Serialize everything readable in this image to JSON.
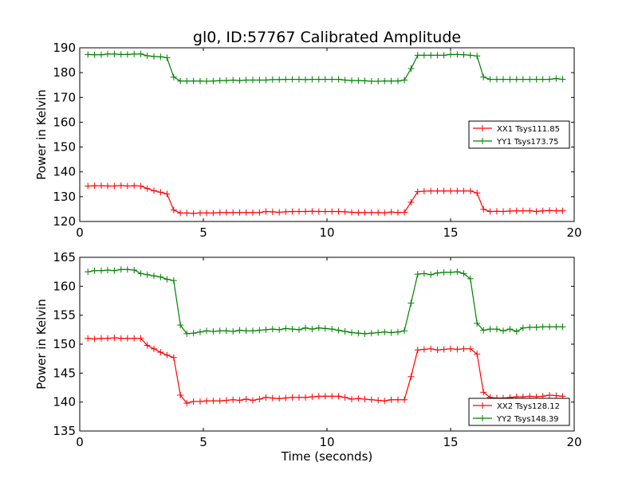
{
  "figure": {
    "title": "gl0, ID:57767 Calibrated Amplitude",
    "xlabel": "Time (seconds)"
  },
  "colors": {
    "red": "#ff0000",
    "green": "#008000"
  },
  "chart_data": [
    {
      "type": "line",
      "title": "gl0, ID:57767 Calibrated Amplitude",
      "xlabel": "",
      "ylabel": "Power in Kelvin",
      "xlim": [
        0,
        20
      ],
      "ylim": [
        120,
        190
      ],
      "xticks": [
        0,
        5,
        10,
        15,
        20
      ],
      "yticks": [
        120,
        130,
        140,
        150,
        160,
        170,
        180,
        190
      ],
      "grid": false,
      "legend_position": "center-right",
      "series": [
        {
          "name": "XX1 Tsys111.85",
          "color": "#ff0000",
          "marker": "+",
          "x": [
            0.33,
            0.6,
            0.87,
            1.13,
            1.4,
            1.67,
            1.93,
            2.2,
            2.47,
            2.73,
            3.0,
            3.27,
            3.53,
            3.8,
            4.07,
            4.33,
            4.6,
            4.87,
            5.13,
            5.4,
            5.67,
            5.93,
            6.2,
            6.47,
            6.73,
            7.0,
            7.27,
            7.53,
            7.8,
            8.07,
            8.33,
            8.6,
            8.87,
            9.13,
            9.4,
            9.67,
            9.93,
            10.2,
            10.47,
            10.73,
            11.0,
            11.27,
            11.53,
            11.8,
            12.07,
            12.33,
            12.6,
            12.87,
            13.13,
            13.4,
            13.67,
            13.93,
            14.2,
            14.47,
            14.73,
            15.0,
            15.27,
            15.53,
            15.8,
            16.07,
            16.33,
            16.6,
            16.87,
            17.13,
            17.4,
            17.67,
            17.93,
            18.2,
            18.47,
            18.73,
            19.0,
            19.27,
            19.53
          ],
          "y": [
            134.3,
            134.4,
            134.4,
            134.3,
            134.3,
            134.5,
            134.3,
            134.4,
            134.3,
            133.3,
            132.4,
            131.8,
            131.1,
            124.6,
            123.4,
            123.4,
            123.3,
            123.4,
            123.4,
            123.4,
            123.6,
            123.6,
            123.6,
            123.6,
            123.6,
            123.6,
            123.6,
            124.0,
            123.9,
            123.7,
            123.9,
            124.0,
            124.0,
            124.0,
            124.1,
            124.0,
            124.0,
            124.0,
            124.0,
            123.9,
            123.7,
            123.6,
            123.6,
            123.6,
            123.6,
            123.5,
            123.8,
            123.6,
            123.7,
            127.8,
            132.0,
            132.2,
            132.3,
            132.3,
            132.3,
            132.3,
            132.3,
            132.3,
            132.3,
            131.5,
            124.9,
            124.0,
            124.1,
            124.0,
            124.2,
            124.3,
            124.3,
            124.3,
            124.0,
            124.3,
            124.4,
            124.3,
            124.3
          ]
        },
        {
          "name": "YY1 Tsys173.75",
          "color": "#008000",
          "marker": "+",
          "x": [
            0.33,
            0.6,
            0.87,
            1.13,
            1.4,
            1.67,
            1.93,
            2.2,
            2.47,
            2.73,
            3.0,
            3.27,
            3.53,
            3.8,
            4.07,
            4.33,
            4.6,
            4.87,
            5.13,
            5.4,
            5.67,
            5.93,
            6.2,
            6.47,
            6.73,
            7.0,
            7.27,
            7.53,
            7.8,
            8.07,
            8.33,
            8.6,
            8.87,
            9.13,
            9.4,
            9.67,
            9.93,
            10.2,
            10.47,
            10.73,
            11.0,
            11.27,
            11.53,
            11.8,
            12.07,
            12.33,
            12.6,
            12.87,
            13.13,
            13.4,
            13.67,
            13.93,
            14.2,
            14.47,
            14.73,
            15.0,
            15.27,
            15.53,
            15.8,
            16.07,
            16.33,
            16.6,
            16.87,
            17.13,
            17.4,
            17.67,
            17.93,
            18.2,
            18.47,
            18.73,
            19.0,
            19.27,
            19.53
          ],
          "y": [
            187.3,
            187.2,
            187.2,
            187.5,
            187.5,
            187.3,
            187.3,
            187.5,
            187.5,
            186.8,
            186.5,
            186.4,
            186.0,
            178.2,
            176.6,
            176.6,
            176.6,
            176.6,
            176.5,
            176.6,
            176.8,
            176.8,
            177.0,
            176.8,
            177.0,
            177.0,
            177.0,
            177.0,
            177.2,
            177.2,
            177.3,
            177.3,
            177.3,
            177.2,
            177.3,
            177.3,
            177.3,
            177.3,
            177.3,
            177.0,
            176.8,
            176.8,
            176.7,
            176.5,
            176.5,
            176.6,
            176.6,
            176.6,
            177.0,
            181.6,
            187.0,
            187.0,
            187.0,
            187.0,
            187.0,
            187.3,
            187.3,
            187.2,
            187.0,
            186.7,
            178.2,
            177.3,
            177.3,
            177.3,
            177.3,
            177.3,
            177.3,
            177.3,
            177.3,
            177.3,
            177.3,
            177.6,
            177.3
          ]
        }
      ]
    },
    {
      "type": "line",
      "title": "",
      "xlabel": "Time (seconds)",
      "ylabel": "Power in Kelvin",
      "xlim": [
        0,
        20
      ],
      "ylim": [
        135,
        165
      ],
      "xticks": [
        0,
        5,
        10,
        15,
        20
      ],
      "yticks": [
        135,
        140,
        145,
        150,
        155,
        160,
        165
      ],
      "grid": false,
      "legend_position": "bottom-right",
      "series": [
        {
          "name": "XX2 Tsys128.12",
          "color": "#ff0000",
          "marker": "+",
          "x": [
            0.33,
            0.6,
            0.87,
            1.13,
            1.4,
            1.67,
            1.93,
            2.2,
            2.47,
            2.73,
            3.0,
            3.27,
            3.53,
            3.8,
            4.07,
            4.33,
            4.6,
            4.87,
            5.13,
            5.4,
            5.67,
            5.93,
            6.2,
            6.47,
            6.73,
            7.0,
            7.27,
            7.53,
            7.8,
            8.07,
            8.33,
            8.6,
            8.87,
            9.13,
            9.4,
            9.67,
            9.93,
            10.2,
            10.47,
            10.73,
            11.0,
            11.27,
            11.53,
            11.8,
            12.07,
            12.33,
            12.6,
            12.87,
            13.13,
            13.4,
            13.67,
            13.93,
            14.2,
            14.47,
            14.73,
            15.0,
            15.27,
            15.53,
            15.8,
            16.07,
            16.33,
            16.6,
            16.87,
            17.13,
            17.4,
            17.67,
            17.93,
            18.2,
            18.47,
            18.73,
            19.0,
            19.27,
            19.53
          ],
          "y": [
            151.0,
            150.9,
            151.0,
            151.0,
            151.1,
            151.0,
            151.0,
            151.0,
            151.0,
            149.8,
            149.2,
            148.6,
            148.1,
            147.7,
            141.2,
            139.8,
            140.1,
            140.1,
            140.2,
            140.2,
            140.2,
            140.3,
            140.4,
            140.3,
            140.5,
            140.3,
            140.5,
            140.8,
            140.7,
            140.6,
            140.7,
            140.8,
            140.8,
            140.8,
            140.9,
            141.0,
            141.0,
            141.0,
            141.0,
            140.8,
            140.5,
            140.6,
            140.5,
            140.4,
            140.3,
            140.2,
            140.4,
            140.4,
            140.4,
            144.4,
            149.0,
            149.1,
            149.2,
            149.0,
            149.1,
            149.2,
            149.1,
            149.2,
            149.2,
            148.3,
            141.7,
            140.8,
            140.7,
            140.7,
            140.8,
            140.9,
            140.9,
            141.0,
            140.9,
            141.0,
            141.2,
            141.1,
            141.0
          ]
        },
        {
          "name": "YY2 Tsys148.39",
          "color": "#008000",
          "marker": "+",
          "x": [
            0.33,
            0.6,
            0.87,
            1.13,
            1.4,
            1.67,
            1.93,
            2.2,
            2.47,
            2.73,
            3.0,
            3.27,
            3.53,
            3.8,
            4.07,
            4.33,
            4.6,
            4.87,
            5.13,
            5.4,
            5.67,
            5.93,
            6.2,
            6.47,
            6.73,
            7.0,
            7.27,
            7.53,
            7.8,
            8.07,
            8.33,
            8.6,
            8.87,
            9.13,
            9.4,
            9.67,
            9.93,
            10.2,
            10.47,
            10.73,
            11.0,
            11.27,
            11.53,
            11.8,
            12.07,
            12.33,
            12.6,
            12.87,
            13.13,
            13.4,
            13.67,
            13.93,
            14.2,
            14.47,
            14.73,
            15.0,
            15.27,
            15.53,
            15.8,
            16.07,
            16.33,
            16.6,
            16.87,
            17.13,
            17.4,
            17.67,
            17.93,
            18.2,
            18.47,
            18.73,
            19.0,
            19.27,
            19.53
          ],
          "y": [
            162.5,
            162.7,
            162.7,
            162.8,
            162.7,
            162.9,
            162.9,
            162.8,
            162.2,
            162.0,
            161.8,
            161.6,
            161.2,
            161.0,
            153.3,
            151.8,
            151.9,
            152.1,
            152.3,
            152.2,
            152.3,
            152.3,
            152.2,
            152.4,
            152.3,
            152.3,
            152.4,
            152.5,
            152.6,
            152.5,
            152.7,
            152.6,
            152.5,
            152.8,
            152.6,
            152.8,
            152.7,
            152.6,
            152.4,
            152.2,
            152.0,
            151.9,
            151.8,
            151.9,
            152.0,
            152.1,
            152.0,
            152.1,
            152.3,
            157.1,
            162.1,
            162.2,
            162.0,
            162.3,
            162.4,
            162.4,
            162.5,
            162.2,
            161.3,
            153.6,
            152.4,
            152.6,
            152.6,
            152.3,
            152.6,
            152.2,
            152.8,
            152.9,
            152.9,
            153.0,
            153.0,
            153.0,
            153.0
          ]
        }
      ]
    }
  ]
}
